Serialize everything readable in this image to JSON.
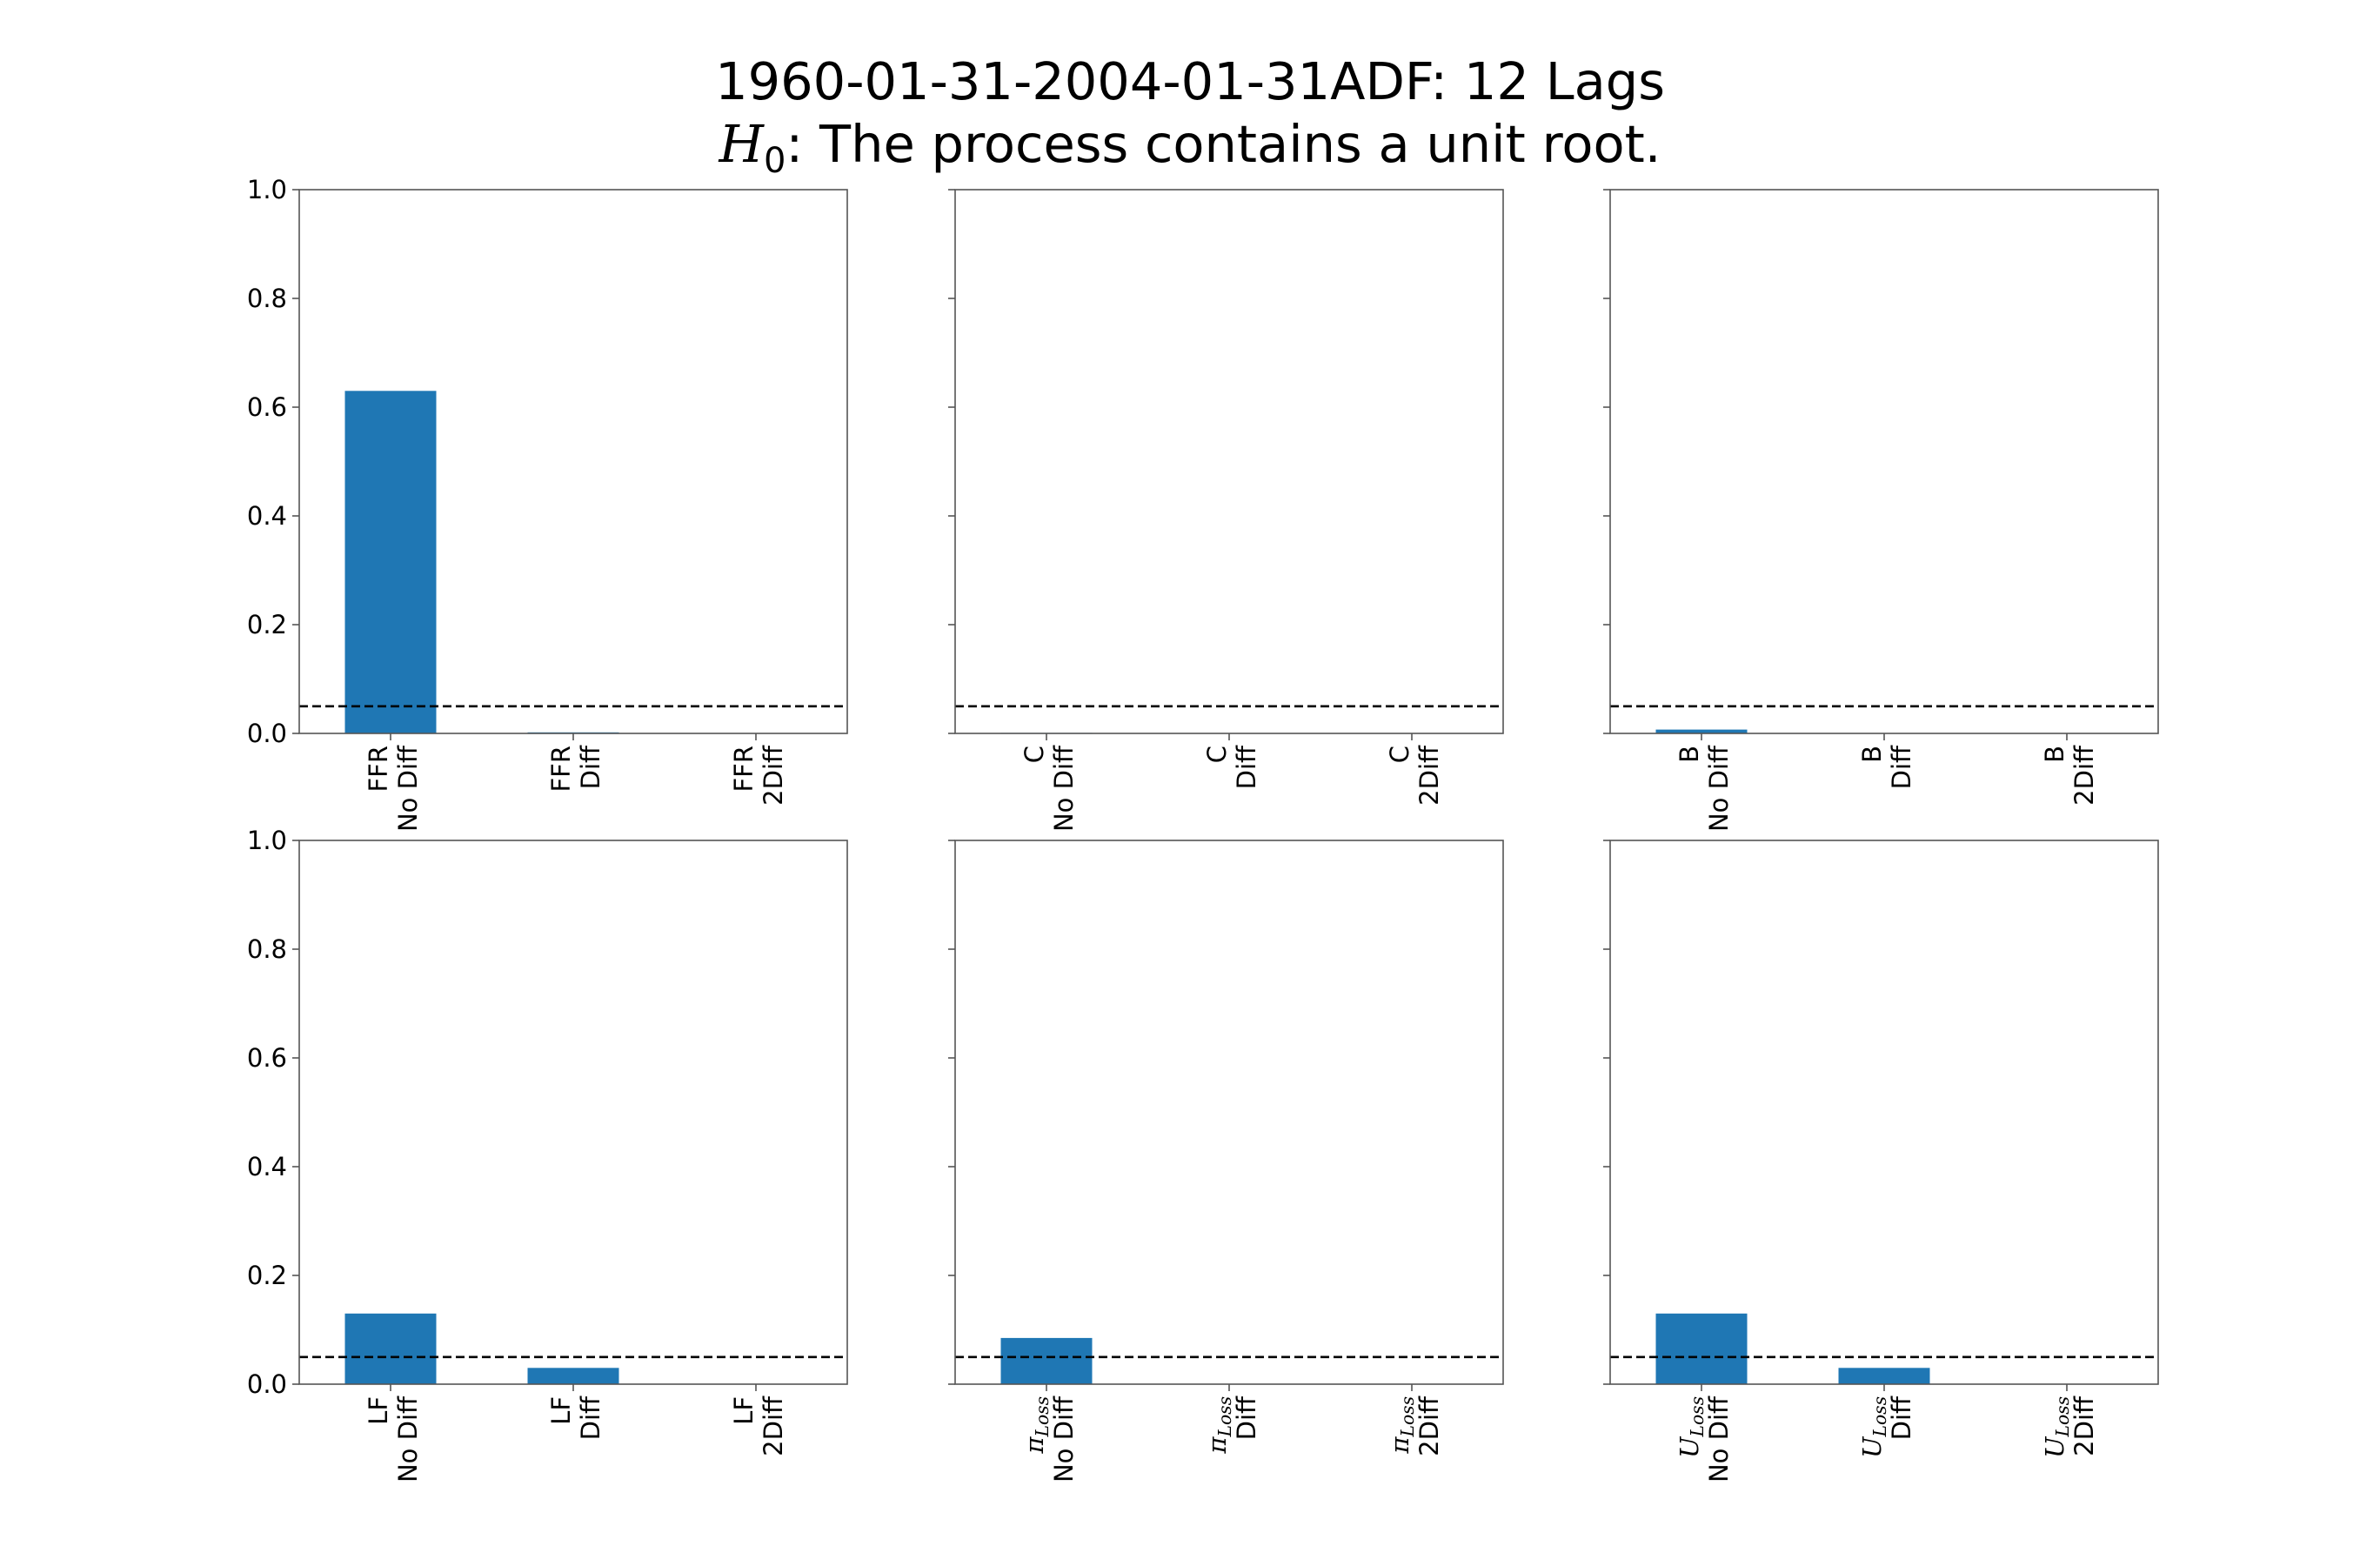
{
  "chart_data": {
    "type": "bar",
    "title_line1": "1960-01-31-2004-01-31ADF: 12 Lags",
    "title_line2": {
      "math_symbol": "H",
      "math_subscript": "0",
      "text": ":  The process contains a unit root."
    },
    "ylim": [
      0,
      1.0
    ],
    "yticks": [
      "0.0",
      "0.2",
      "0.4",
      "0.6",
      "0.8",
      "1.0"
    ],
    "reference_line": {
      "y": 0.05,
      "style": "dashed",
      "color": "#000000"
    },
    "bar_color": "#1f77b4",
    "grid": false,
    "shared_y": true,
    "panels": [
      {
        "variable": "FFR",
        "subscript": "",
        "categories": [
          [
            "FFR",
            "No Diff"
          ],
          [
            "FFR",
            "Diff"
          ],
          [
            "FFR",
            "2Diff"
          ]
        ],
        "values": [
          0.63,
          0.002,
          0.0
        ]
      },
      {
        "variable": "C",
        "subscript": "",
        "categories": [
          [
            "C",
            "No Diff"
          ],
          [
            "C",
            "Diff"
          ],
          [
            "C",
            "2Diff"
          ]
        ],
        "values": [
          0.001,
          0.0,
          0.0
        ]
      },
      {
        "variable": "B",
        "subscript": "",
        "categories": [
          [
            "B",
            "No Diff"
          ],
          [
            "B",
            "Diff"
          ],
          [
            "B",
            "2Diff"
          ]
        ],
        "values": [
          0.007,
          0.0,
          0.0
        ]
      },
      {
        "variable": "LF",
        "subscript": "",
        "categories": [
          [
            "LF",
            "No Diff"
          ],
          [
            "LF",
            "Diff"
          ],
          [
            "LF",
            "2Diff"
          ]
        ],
        "values": [
          0.13,
          0.03,
          0.0
        ]
      },
      {
        "variable": "π",
        "subscript": "Loss",
        "categories": [
          [
            "π",
            "No Diff"
          ],
          [
            "π",
            "Diff"
          ],
          [
            "π",
            "2Diff"
          ]
        ],
        "values": [
          0.085,
          0.0,
          0.0
        ]
      },
      {
        "variable": "U",
        "subscript": "Loss",
        "categories": [
          [
            "U",
            "No Diff"
          ],
          [
            "U",
            "Diff"
          ],
          [
            "U",
            "2Diff"
          ]
        ],
        "values": [
          0.13,
          0.03,
          0.0
        ]
      }
    ]
  }
}
